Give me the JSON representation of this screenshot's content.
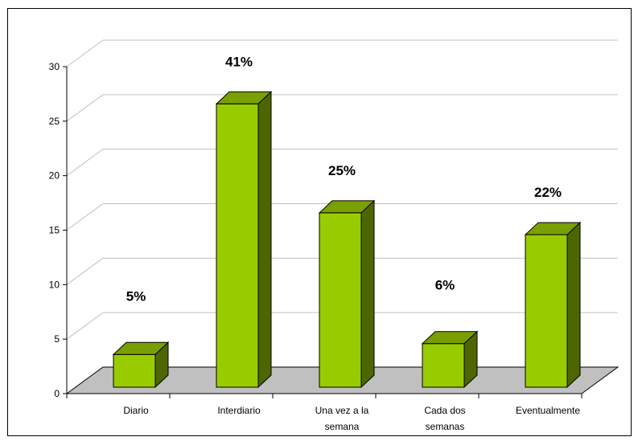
{
  "chart_data": {
    "type": "bar",
    "categories": [
      [
        "Diario"
      ],
      [
        "Interdiario"
      ],
      [
        "Una vez a la",
        "semana"
      ],
      [
        "Cada dos",
        "semanas"
      ],
      [
        "Eventualmente"
      ]
    ],
    "values": [
      3,
      26,
      16,
      4,
      14
    ],
    "percent_labels": [
      "5%",
      "41%",
      "25%",
      "6%",
      "22%"
    ],
    "y_ticks": [
      "0",
      "5",
      "10",
      "15",
      "20",
      "25",
      "30"
    ],
    "ylim": [
      0,
      30
    ],
    "grid": true,
    "colors": {
      "bar_front": "#99cc00",
      "bar_side": "#4d6600",
      "bar_top": "#7a9f00",
      "floor": "#c0c0c0",
      "grid": "#c0c0c0"
    }
  }
}
